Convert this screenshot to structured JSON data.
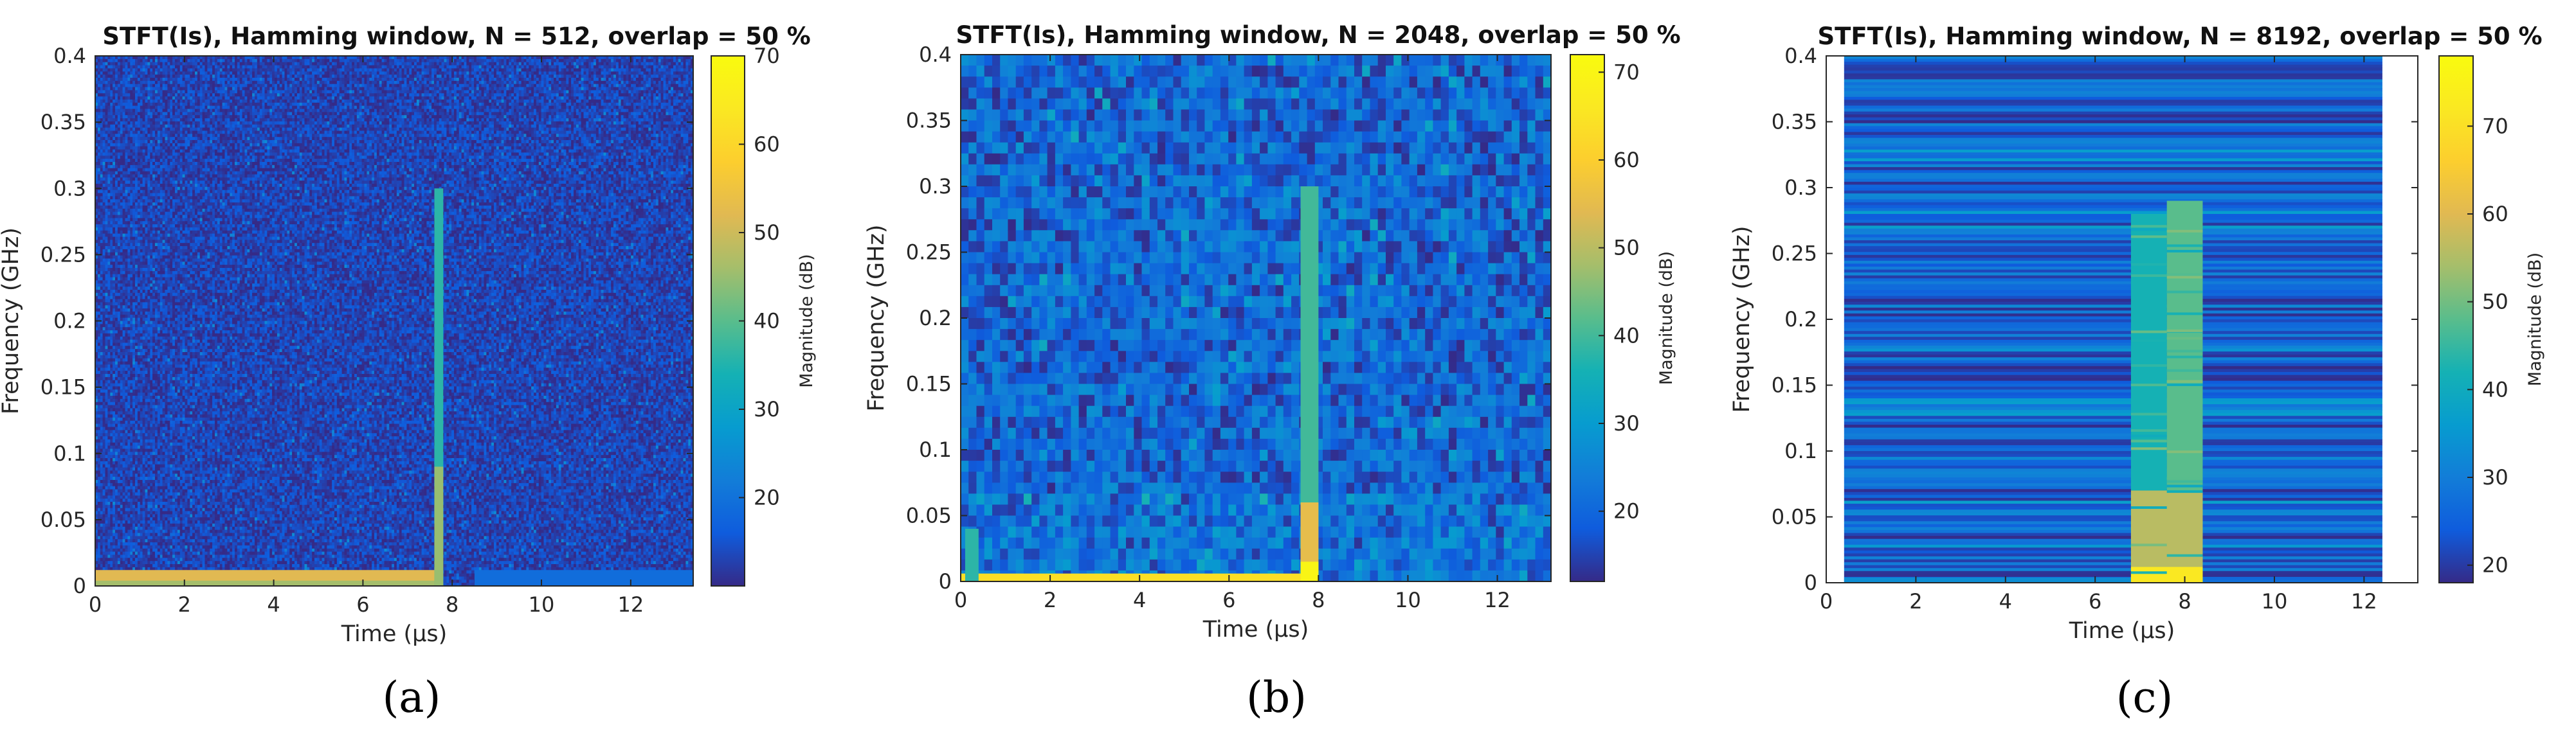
{
  "chart_data": [
    {
      "type": "heatmap",
      "panel": "(a)",
      "title": "STFT(Is), Hamming window, N = 512, overlap = 50 %",
      "xlabel": "Time (μs)",
      "ylabel": "Frequency (GHz)",
      "colorbar_label": "Magnitude (dB)",
      "xlim": [
        0,
        13.4
      ],
      "ylim": [
        0,
        0.4
      ],
      "xticks": [
        0,
        2,
        4,
        6,
        8,
        10,
        12
      ],
      "yticks": [
        0,
        0.05,
        0.1,
        0.15,
        0.2,
        0.25,
        0.3,
        0.35,
        0.4
      ],
      "yticklabels": [
        "0",
        "0.05",
        "0.1",
        "0.15",
        "0.2",
        "0.25",
        "0.3",
        "0.35",
        "0.4"
      ],
      "clim": [
        10,
        70
      ],
      "cticks": [
        20,
        30,
        40,
        50,
        60,
        70
      ],
      "data_extent_x": [
        0,
        13.4
      ],
      "background_db": 13,
      "features": [
        {
          "name": "low-frequency band",
          "time": [
            0,
            7.7
          ],
          "freq": [
            0,
            0.012
          ],
          "db": 52
        },
        {
          "name": "band bottom edge",
          "time": [
            0,
            7.7
          ],
          "freq": [
            0,
            0.004
          ],
          "db": 46
        },
        {
          "name": "pulse line",
          "time": [
            7.6,
            7.8
          ],
          "freq": [
            0,
            0.3
          ],
          "db": 36
        },
        {
          "name": "pulse core",
          "time": [
            7.6,
            7.8
          ],
          "freq": [
            0,
            0.09
          ],
          "db": 45
        },
        {
          "name": "tail band",
          "time": [
            8.5,
            13.4
          ],
          "freq": [
            0,
            0.012
          ],
          "db": 19
        }
      ]
    },
    {
      "type": "heatmap",
      "panel": "(b)",
      "title": "STFT(Is), Hamming window, N = 2048, overlap = 50 %",
      "xlabel": "Time (μs)",
      "ylabel": "Frequency (GHz)",
      "colorbar_label": "Magnitude (dB)",
      "xlim": [
        0,
        13.2
      ],
      "ylim": [
        0,
        0.4
      ],
      "xticks": [
        0,
        2,
        4,
        6,
        8,
        10,
        12
      ],
      "yticks": [
        0,
        0.05,
        0.1,
        0.15,
        0.2,
        0.25,
        0.3,
        0.35,
        0.4
      ],
      "yticklabels": [
        "0",
        "0.05",
        "0.1",
        "0.15",
        "0.2",
        "0.25",
        "0.3",
        "0.35",
        "0.4"
      ],
      "clim": [
        12,
        72
      ],
      "cticks": [
        20,
        30,
        40,
        50,
        60,
        70
      ],
      "data_extent_x": [
        0,
        13.2
      ],
      "background_db": 20,
      "features": [
        {
          "name": "low-frequency band",
          "time": [
            0,
            7.6
          ],
          "freq": [
            0,
            0.006
          ],
          "db": 64
        },
        {
          "name": "onset burst",
          "time": [
            0.1,
            0.4
          ],
          "freq": [
            0,
            0.04
          ],
          "db": 38
        },
        {
          "name": "pulse line",
          "time": [
            7.6,
            8.0
          ],
          "freq": [
            0,
            0.3
          ],
          "db": 40
        },
        {
          "name": "pulse core",
          "time": [
            7.6,
            8.0
          ],
          "freq": [
            0,
            0.06
          ],
          "db": 55
        },
        {
          "name": "pulse base",
          "time": [
            7.6,
            8.0
          ],
          "freq": [
            0,
            0.015
          ],
          "db": 70
        }
      ]
    },
    {
      "type": "heatmap",
      "panel": "(c)",
      "title": "STFT(Is), Hamming window, N = 8192, overlap = 50 %",
      "xlabel": "Time (μs)",
      "ylabel": "Frequency (GHz)",
      "colorbar_label": "Magnitude (dB)",
      "xlim": [
        0,
        13.2
      ],
      "ylim": [
        0,
        0.4
      ],
      "xticks": [
        0,
        2,
        4,
        6,
        8,
        10,
        12
      ],
      "yticks": [
        0,
        0.05,
        0.1,
        0.15,
        0.2,
        0.25,
        0.3,
        0.35,
        0.4
      ],
      "yticklabels": [
        "0",
        "0.05",
        "0.1",
        "0.15",
        "0.2",
        "0.25",
        "0.3",
        "0.35",
        "0.4"
      ],
      "clim": [
        18,
        78
      ],
      "cticks": [
        20,
        30,
        40,
        50,
        60,
        70
      ],
      "data_extent_x": [
        0.4,
        12.4
      ],
      "background_db": 25,
      "features": [
        {
          "name": "low-frequency band",
          "time": [
            0.4,
            6.8
          ],
          "freq": [
            0,
            0.004
          ],
          "db": 33
        },
        {
          "name": "pulse block left",
          "time": [
            6.8,
            7.6
          ],
          "freq": [
            0,
            0.28
          ],
          "db": 42
        },
        {
          "name": "pulse block right",
          "time": [
            7.6,
            8.4
          ],
          "freq": [
            0,
            0.29
          ],
          "db": 48
        },
        {
          "name": "pulse block core",
          "time": [
            6.8,
            8.4
          ],
          "freq": [
            0,
            0.07
          ],
          "db": 56
        },
        {
          "name": "pulse block base",
          "time": [
            6.8,
            8.4
          ],
          "freq": [
            0,
            0.012
          ],
          "db": 72
        }
      ]
    }
  ]
}
